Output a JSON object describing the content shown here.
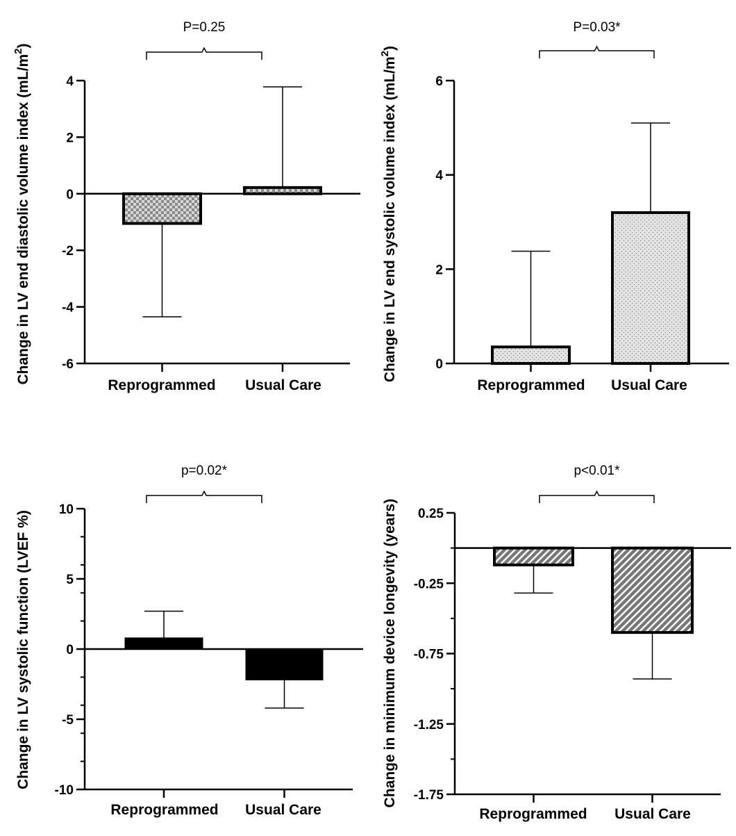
{
  "chart_data": [
    {
      "type": "bar",
      "ylabel": "Change in LV end diastolic volume index (mL/m",
      "ylabel_sup": "2",
      "ylabel_close": ")",
      "categories": [
        "Reprogrammed",
        "Usual Care"
      ],
      "values": [
        -1.05,
        0.22
      ],
      "error_ends": [
        -4.35,
        3.78
      ],
      "ylim": [
        -6,
        4
      ],
      "major_ticks": [
        4,
        2,
        0,
        -2,
        -4,
        -6
      ],
      "tick_labels": [
        "4",
        "2",
        "0",
        "-2",
        "-4",
        "-6"
      ],
      "minor_ticks": [],
      "fill": "checker",
      "significance": "P=0.25"
    },
    {
      "type": "bar",
      "ylabel": "Change in LV end systolic volume index (mL/m",
      "ylabel_sup": "2",
      "ylabel_close": ")",
      "categories": [
        "Reprogrammed",
        "Usual Care"
      ],
      "values": [
        0.35,
        3.2
      ],
      "error_ends": [
        2.38,
        5.1
      ],
      "ylim": [
        0,
        6
      ],
      "major_ticks": [
        6,
        4,
        2,
        0
      ],
      "tick_labels": [
        "6",
        "4",
        "2",
        "0"
      ],
      "minor_ticks": [],
      "fill": "dots",
      "significance": "P=0.03*"
    },
    {
      "type": "bar",
      "ylabel": "Change in LV systolic function (LVEF %)",
      "ylabel_sup": "",
      "ylabel_close": "",
      "categories": [
        "Reprogrammed",
        "Usual Care"
      ],
      "values": [
        0.8,
        -2.2
      ],
      "error_ends": [
        2.7,
        -4.2
      ],
      "ylim": [
        -10,
        10
      ],
      "major_ticks": [
        10,
        5,
        0,
        -5,
        -10
      ],
      "tick_labels": [
        "10",
        "5",
        "0",
        "-5",
        "-10"
      ],
      "minor_ticks": [
        8,
        6,
        4,
        2,
        -2,
        -4,
        -6,
        -8
      ],
      "fill": "solid",
      "significance": "p=0.02*"
    },
    {
      "type": "bar",
      "ylabel": "Change in minimum device longevity (years)",
      "ylabel_sup": "",
      "ylabel_close": "",
      "categories": [
        "Reprogrammed",
        "Usual Care"
      ],
      "values": [
        -0.12,
        -0.6
      ],
      "error_ends": [
        -0.32,
        -0.93
      ],
      "ylim": [
        -1.75,
        0.25
      ],
      "major_ticks": [
        0.25,
        -0.25,
        -0.75,
        -1.25,
        -1.75
      ],
      "tick_labels": [
        "0.25",
        "-0.25",
        "-0.75",
        "-1.25",
        "-1.75"
      ],
      "minor_ticks": [
        0,
        -0.5,
        -1.0,
        -1.5
      ],
      "fill": "hatch",
      "significance": "p<0.01*"
    }
  ]
}
